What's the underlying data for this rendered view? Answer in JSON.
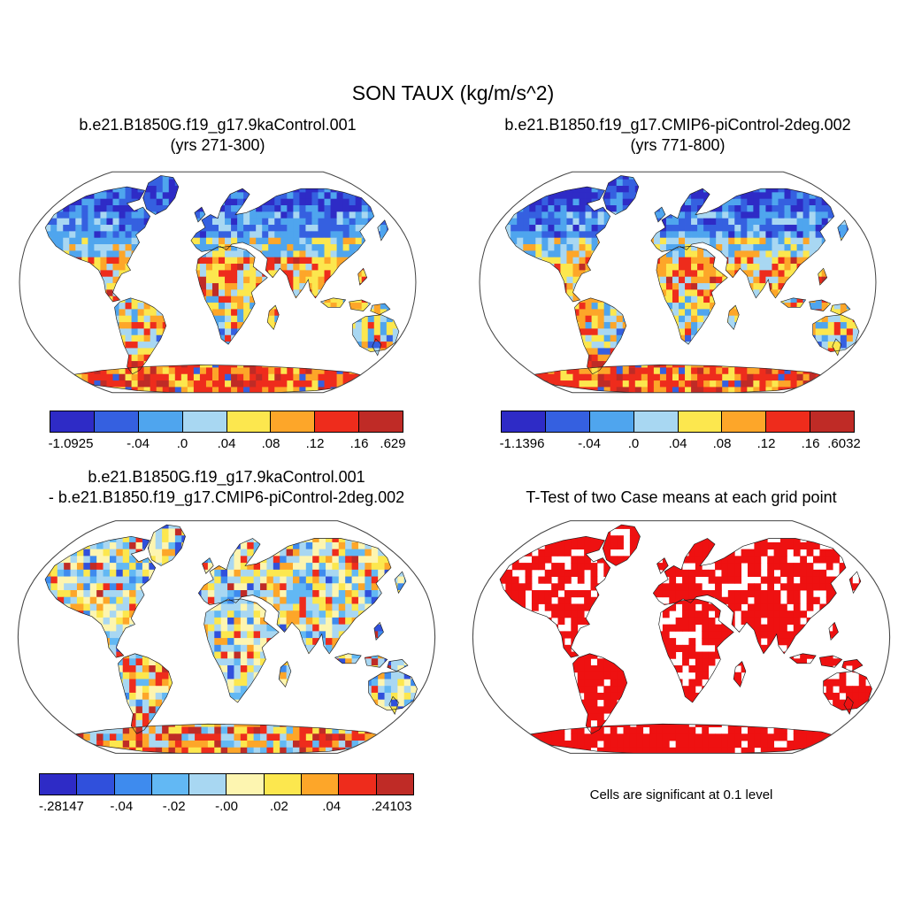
{
  "figure_title": "SON TAUX (kg/m/s^2)",
  "panels": {
    "case1": {
      "title_line1": "b.e21.B1850G.f19_g17.9kaControl.001",
      "title_line2": "(yrs 271-300)",
      "colorbar_ticks": [
        "-1.0925",
        "-.04",
        ".0",
        ".04",
        ".08",
        ".12",
        ".16",
        ".629"
      ],
      "colorbar_colors": [
        "#2E2BC6",
        "#3560E0",
        "#4FA5EE",
        "#A8D7F2",
        "#FCE74E",
        "#FDA629",
        "#EE2C1C",
        "#BF2B26"
      ]
    },
    "case2": {
      "title_line1": "b.e21.B1850.f19_g17.CMIP6-piControl-2deg.002",
      "title_line2": "(yrs 771-800)",
      "colorbar_ticks": [
        "-1.1396",
        "-.04",
        ".0",
        ".04",
        ".08",
        ".12",
        ".16",
        ".6032"
      ],
      "colorbar_colors": [
        "#2E2BC6",
        "#3560E0",
        "#4FA5EE",
        "#A8D7F2",
        "#FCE74E",
        "#FDA629",
        "#EE2C1C",
        "#BF2B26"
      ]
    },
    "diff": {
      "title_line1": "b.e21.B1850G.f19_g17.9kaControl.001",
      "title_line2": "- b.e21.B1850.f19_g17.CMIP6-piControl-2deg.002",
      "colorbar_ticks": [
        "-.28147",
        "-.04",
        "-.02",
        "-.00",
        ".02",
        ".04",
        ".24103"
      ],
      "colorbar_colors": [
        "#2E2BC6",
        "#3050DC",
        "#3E8BEE",
        "#62B8F4",
        "#A8D7F2",
        "#FDF5B0",
        "#FCE74E",
        "#FDA629",
        "#EE2C1C",
        "#BF2B26"
      ]
    },
    "ttest": {
      "title": "T-Test of two Case means at each grid point",
      "caption": "Cells are significant at 0.1 level",
      "significance_color": "#EE1111"
    }
  },
  "chart_data": [
    {
      "type": "heatmap",
      "subtype": "global_map",
      "projection": "robinson",
      "variable": "SON TAUX (kg/m/s^2)",
      "title": "b.e21.B1850G.f19_g17.9kaControl.001 (yrs 271-300)",
      "data_min": -1.0925,
      "data_max": 0.629,
      "contour_levels": [
        -0.04,
        0,
        0.04,
        0.08,
        0.12,
        0.16
      ],
      "palette": [
        "#2E2BC6",
        "#3560E0",
        "#4FA5EE",
        "#A8D7F2",
        "#FCE74E",
        "#FDA629",
        "#EE2C1C",
        "#BF2B26"
      ],
      "legend_position": "bottom"
    },
    {
      "type": "heatmap",
      "subtype": "global_map",
      "projection": "robinson",
      "variable": "SON TAUX (kg/m/s^2)",
      "title": "b.e21.B1850.f19_g17.CMIP6-piControl-2deg.002 (yrs 771-800)",
      "data_min": -1.1396,
      "data_max": 0.6032,
      "contour_levels": [
        -0.04,
        0,
        0.04,
        0.08,
        0.12,
        0.16
      ],
      "palette": [
        "#2E2BC6",
        "#3560E0",
        "#4FA5EE",
        "#A8D7F2",
        "#FCE74E",
        "#FDA629",
        "#EE2C1C",
        "#BF2B26"
      ],
      "legend_position": "bottom"
    },
    {
      "type": "heatmap",
      "subtype": "global_map_difference",
      "projection": "robinson",
      "variable": "SON TAUX (kg/m/s^2)",
      "title": "b.e21.B1850G.f19_g17.9kaControl.001 - b.e21.B1850.f19_g17.CMIP6-piControl-2deg.002",
      "data_min": -0.28147,
      "data_max": 0.24103,
      "contour_levels": [
        -0.04,
        -0.02,
        0,
        0.02,
        0.04
      ],
      "palette": [
        "#2E2BC6",
        "#3050DC",
        "#3E8BEE",
        "#62B8F4",
        "#A8D7F2",
        "#FDF5B0",
        "#FCE74E",
        "#FDA629",
        "#EE2C1C",
        "#BF2B26"
      ],
      "legend_position": "bottom"
    },
    {
      "type": "heatmap",
      "subtype": "significance_mask",
      "projection": "robinson",
      "title": "T-Test of two Case means at each grid point",
      "note": "Cells are significant at 0.1 level",
      "significance_level": 0.1,
      "significant_color": "#EE1111"
    }
  ]
}
